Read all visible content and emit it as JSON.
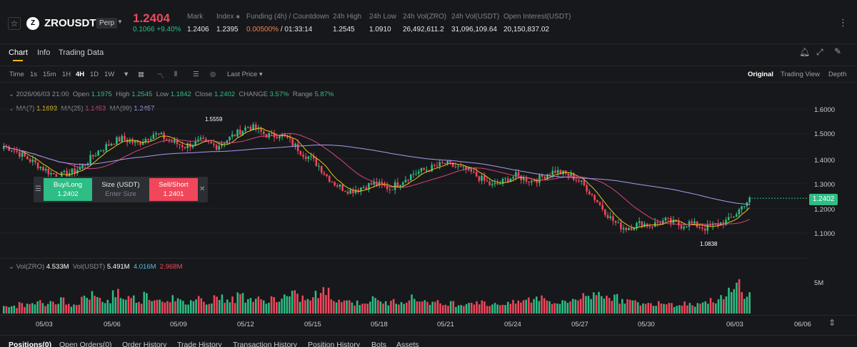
{
  "header": {
    "symbol": "ZROUSDT",
    "badge": "Perp",
    "coin_letter": "Z",
    "last_price": "1.2404",
    "change": "0.1066 +9.40%",
    "stats": [
      {
        "label": "Mark",
        "value": "1.2406"
      },
      {
        "label": "Index",
        "value": "1.2395"
      },
      {
        "label": "Funding (4h) / Countdown",
        "value_funding": "0.00500%",
        "value_countdown": " / 01:33:14"
      },
      {
        "label": "24h High",
        "value": "1.2545"
      },
      {
        "label": "24h Low",
        "value": "1.0910"
      },
      {
        "label": "24h Vol(ZRO)",
        "value": "26,492,611.2"
      },
      {
        "label": "24h Vol(USDT)",
        "value": "31,096,109.64"
      },
      {
        "label": "Open Interest(USDT)",
        "value": "20,150,837.02"
      }
    ]
  },
  "tabs": [
    "Chart",
    "Info",
    "Trading Data"
  ],
  "toolbar": {
    "intervals": [
      "Time",
      "1s",
      "15m",
      "1H",
      "4H",
      "1D",
      "1W"
    ],
    "active_interval": "4H",
    "price_type": "Last Price",
    "views": [
      "Original",
      "Trading View",
      "Depth"
    ],
    "active_view": "Original"
  },
  "ohlc": {
    "date": "2026/06/03 21:00",
    "open_label": "Open",
    "open": "1.1975",
    "high_label": "High",
    "high": "1.2545",
    "low_label": "Low",
    "low": "1.1842",
    "close_label": "Close",
    "close": "1.2402",
    "change_label": "CHANGE",
    "change": "3.57%",
    "range_label": "Range",
    "range": "5.87%"
  },
  "ma": {
    "ma7_label": "MA(7)",
    "ma7": "1.1693",
    "ma25_label": "MA(25)",
    "ma25": "1.1453",
    "ma99_label": "MA(99)",
    "ma99": "1.2457"
  },
  "order": {
    "buy_label": "Buy/Long",
    "buy_price": "1.2402",
    "size_label": "Size (USDT)",
    "size_placeholder": "Enter Size",
    "sell_label": "Sell/Short",
    "sell_price": "1.2401"
  },
  "annotations": {
    "high_marker": "1.5559",
    "low_marker": "1.0838"
  },
  "price_axis": [
    "1.6000",
    "1.5000",
    "1.4000",
    "1.3000",
    "1.2000",
    "1.1000"
  ],
  "current_price_tag": "1.2402",
  "volume": {
    "label": "Vol(ZRO)",
    "zro": "4.533M",
    "usdt_label": "Vol(USDT)",
    "usdt": "5.491M",
    "ma1": "4.016M",
    "ma2": "2.968M",
    "axis_label": "5M"
  },
  "dates": [
    "05/03",
    "05/06",
    "05/09",
    "05/12",
    "05/15",
    "05/18",
    "05/21",
    "05/24",
    "05/27",
    "05/30",
    "06/03",
    "06/06"
  ],
  "bottom_tabs": [
    "Positions(0)",
    "Open Orders(0)",
    "Order History",
    "Trade History",
    "Transaction History",
    "Position History",
    "Bots",
    "Assets"
  ],
  "colors": {
    "up": "#2ebd85",
    "down": "#f0475b",
    "ma7": "#e8c21c",
    "ma25": "#d5457e",
    "ma99": "#a99cf2",
    "accent": "#f0b90b"
  },
  "chart_data": {
    "type": "candlestick",
    "interval": "4H",
    "price_range": [
      1.05,
      1.65
    ],
    "path": [
      1.45,
      1.44,
      1.42,
      1.4,
      1.38,
      1.36,
      1.34,
      1.33,
      1.34,
      1.35,
      1.37,
      1.4,
      1.43,
      1.45,
      1.47,
      1.48,
      1.47,
      1.46,
      1.48,
      1.5,
      1.49,
      1.47,
      1.46,
      1.45,
      1.46,
      1.47,
      1.46,
      1.45,
      1.47,
      1.49,
      1.51,
      1.53,
      1.52,
      1.5,
      1.49,
      1.5,
      1.48,
      1.45,
      1.42,
      1.4,
      1.37,
      1.33,
      1.3,
      1.28,
      1.27,
      1.28,
      1.29,
      1.3,
      1.29,
      1.28,
      1.3,
      1.32,
      1.34,
      1.35,
      1.36,
      1.37,
      1.38,
      1.37,
      1.36,
      1.35,
      1.33,
      1.31,
      1.29,
      1.3,
      1.32,
      1.33,
      1.32,
      1.31,
      1.32,
      1.34,
      1.35,
      1.34,
      1.33,
      1.31,
      1.28,
      1.24,
      1.2,
      1.16,
      1.13,
      1.12,
      1.13,
      1.14,
      1.13,
      1.14,
      1.15,
      1.14,
      1.13,
      1.14,
      1.13,
      1.12,
      1.13,
      1.14,
      1.15,
      1.18,
      1.22,
      1.24
    ],
    "volume_relative": [
      0.2,
      0.25,
      0.3,
      0.28,
      0.35,
      0.3,
      0.4,
      0.45,
      0.3,
      0.35,
      0.5,
      0.6,
      0.45,
      0.4,
      0.7,
      0.55,
      0.5,
      0.45,
      0.6,
      0.5,
      0.45,
      0.5,
      0.4,
      0.35,
      0.45,
      0.5,
      0.4,
      0.55,
      0.5,
      0.45,
      0.6,
      0.5,
      0.45,
      0.4,
      0.5,
      0.45,
      0.55,
      0.6,
      0.5,
      0.45,
      0.65,
      0.7,
      0.5,
      0.45,
      0.4,
      0.35,
      0.4,
      0.45,
      0.4,
      0.35,
      0.4,
      0.45,
      0.5,
      0.45,
      0.4,
      0.35,
      0.3,
      0.35,
      0.3,
      0.35,
      0.4,
      0.35,
      0.3,
      0.35,
      0.3,
      0.35,
      0.4,
      0.45,
      0.5,
      0.55,
      0.4,
      0.35,
      0.4,
      0.5,
      0.55,
      0.6,
      0.7,
      0.65,
      0.5,
      0.45,
      0.4,
      0.35,
      0.3,
      0.35,
      0.4,
      0.35,
      0.3,
      0.35,
      0.3,
      0.35,
      0.4,
      0.45,
      0.5,
      0.7,
      1.0,
      0.6
    ]
  }
}
